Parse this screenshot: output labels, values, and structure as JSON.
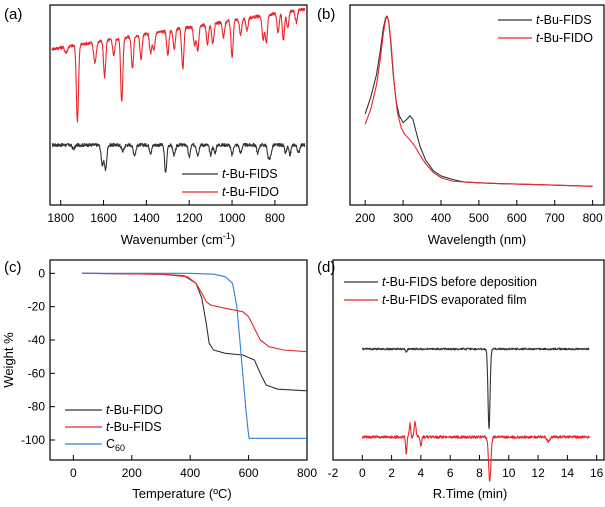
{
  "colors": {
    "black": "#333333",
    "red": "#e8262a",
    "blue": "#2f7fd8"
  },
  "chart_data": [
    {
      "panel_label": "(a)",
      "type": "line",
      "xlabel_main": "Wavenumber (cm",
      "xlabel_sup": "-1",
      "xlabel_end": ")",
      "ylabel": "",
      "xlim": [
        1850,
        650
      ],
      "x_reversed": true,
      "yticks_shown": false,
      "xticks": [
        1800,
        1600,
        1400,
        1200,
        1000,
        800
      ],
      "legend_position": "bottom-right",
      "series": [
        {
          "name_italic": "t",
          "name_rest": "-Bu-FIDS",
          "color": "#333333",
          "baseline": 0.3,
          "noise": 0.008,
          "peaks": [
            [
              1740,
              0.02,
              6
            ],
            [
              1605,
              0.1,
              6
            ],
            [
              1590,
              0.12,
              5
            ],
            [
              1510,
              0.03,
              6
            ],
            [
              1455,
              0.05,
              6
            ],
            [
              1380,
              0.04,
              5
            ],
            [
              1310,
              0.14,
              5
            ],
            [
              1270,
              0.05,
              6
            ],
            [
              1200,
              0.06,
              5
            ],
            [
              1160,
              0.05,
              5
            ],
            [
              1100,
              0.05,
              5
            ],
            [
              1080,
              0.04,
              5
            ],
            [
              1000,
              0.05,
              5
            ],
            [
              960,
              0.04,
              5
            ],
            [
              880,
              0.04,
              5
            ],
            [
              830,
              0.06,
              5
            ],
            [
              820,
              0.05,
              5
            ],
            [
              750,
              0.04,
              5
            ],
            [
              730,
              0.05,
              5
            ],
            [
              690,
              0.04,
              5
            ]
          ]
        },
        {
          "name_italic": "t",
          "name_rest": "-Bu-FIDO",
          "color": "#e8262a",
          "baseline_start": 0.78,
          "baseline_end": 0.98,
          "noise": 0.008,
          "peaks": [
            [
              1775,
              0.03,
              6
            ],
            [
              1722,
              0.38,
              5
            ],
            [
              1640,
              0.1,
              6
            ],
            [
              1595,
              0.18,
              5
            ],
            [
              1552,
              0.08,
              5
            ],
            [
              1515,
              0.32,
              5
            ],
            [
              1465,
              0.16,
              5
            ],
            [
              1425,
              0.12,
              5
            ],
            [
              1380,
              0.1,
              5
            ],
            [
              1365,
              0.09,
              5
            ],
            [
              1300,
              0.12,
              5
            ],
            [
              1270,
              0.1,
              5
            ],
            [
              1230,
              0.2,
              5
            ],
            [
              1175,
              0.1,
              5
            ],
            [
              1160,
              0.12,
              5
            ],
            [
              1115,
              0.1,
              5
            ],
            [
              1090,
              0.1,
              5
            ],
            [
              1040,
              0.08,
              5
            ],
            [
              1000,
              0.18,
              5
            ],
            [
              960,
              0.08,
              5
            ],
            [
              930,
              0.06,
              5
            ],
            [
              855,
              0.12,
              5
            ],
            [
              840,
              0.14,
              5
            ],
            [
              785,
              0.1,
              5
            ],
            [
              760,
              0.14,
              5
            ],
            [
              740,
              0.08,
              5
            ],
            [
              700,
              0.06,
              5
            ]
          ]
        }
      ]
    },
    {
      "panel_label": "(b)",
      "type": "line",
      "xlabel": "Wavelength (nm)",
      "ylabel": "",
      "xlim": [
        160,
        830
      ],
      "xticks": [
        200,
        300,
        400,
        500,
        600,
        700,
        800
      ],
      "yticks_shown": false,
      "legend_position": "top-right",
      "series": [
        {
          "name_italic": "t",
          "name_rest": "-Bu-FIDS",
          "color": "#333333",
          "points": [
            [
              200,
              0.43
            ],
            [
              215,
              0.53
            ],
            [
              230,
              0.66
            ],
            [
              240,
              0.8
            ],
            [
              248,
              0.93
            ],
            [
              254,
              0.99
            ],
            [
              258,
              1.0
            ],
            [
              262,
              0.97
            ],
            [
              267,
              0.86
            ],
            [
              274,
              0.66
            ],
            [
              282,
              0.5
            ],
            [
              290,
              0.42
            ],
            [
              300,
              0.38
            ],
            [
              310,
              0.4
            ],
            [
              318,
              0.42
            ],
            [
              326,
              0.4
            ],
            [
              334,
              0.33
            ],
            [
              345,
              0.24
            ],
            [
              360,
              0.16
            ],
            [
              380,
              0.1
            ],
            [
              400,
              0.07
            ],
            [
              430,
              0.05
            ],
            [
              460,
              0.035
            ],
            [
              500,
              0.03
            ],
            [
              560,
              0.025
            ],
            [
              650,
              0.02
            ],
            [
              800,
              0.01
            ]
          ]
        },
        {
          "name_italic": "t",
          "name_rest": "-Bu-FIDO",
          "color": "#e8262a",
          "points": [
            [
              200,
              0.37
            ],
            [
              215,
              0.46
            ],
            [
              230,
              0.6
            ],
            [
              240,
              0.75
            ],
            [
              248,
              0.9
            ],
            [
              254,
              0.98
            ],
            [
              258,
              1.0
            ],
            [
              262,
              0.97
            ],
            [
              268,
              0.85
            ],
            [
              276,
              0.62
            ],
            [
              285,
              0.44
            ],
            [
              295,
              0.35
            ],
            [
              305,
              0.31
            ],
            [
              318,
              0.28
            ],
            [
              332,
              0.24
            ],
            [
              345,
              0.19
            ],
            [
              360,
              0.14
            ],
            [
              380,
              0.09
            ],
            [
              400,
              0.06
            ],
            [
              430,
              0.04
            ],
            [
              460,
              0.035
            ],
            [
              500,
              0.03
            ],
            [
              560,
              0.025
            ],
            [
              650,
              0.02
            ],
            [
              800,
              0.01
            ]
          ]
        }
      ]
    },
    {
      "panel_label": "(c)",
      "type": "line",
      "xlabel": "Temperature (ºC)",
      "ylabel": "Weight %",
      "xlim": [
        -80,
        800
      ],
      "ylim": [
        -112,
        8
      ],
      "xticks": [
        0,
        200,
        400,
        600,
        800
      ],
      "yticks": [
        0,
        -20,
        -40,
        -60,
        -80,
        -100
      ],
      "legend_position": "bottom-left",
      "series": [
        {
          "name_italic": "t",
          "name_rest": "-Bu-FIDO",
          "color": "#333333",
          "points": [
            [
              30,
              0
            ],
            [
              300,
              -0.5
            ],
            [
              380,
              -1.5
            ],
            [
              420,
              -6
            ],
            [
              440,
              -15
            ],
            [
              455,
              -30
            ],
            [
              465,
              -42
            ],
            [
              480,
              -46
            ],
            [
              520,
              -48
            ],
            [
              580,
              -49
            ],
            [
              620,
              -52
            ],
            [
              640,
              -60
            ],
            [
              660,
              -67
            ],
            [
              700,
              -69.5
            ],
            [
              800,
              -70.5
            ]
          ]
        },
        {
          "name_italic": "t",
          "name_rest": "-Bu-FIDS",
          "color": "#e8262a",
          "points": [
            [
              30,
              0
            ],
            [
              300,
              -0.5
            ],
            [
              390,
              -2
            ],
            [
              420,
              -6
            ],
            [
              440,
              -12
            ],
            [
              455,
              -17
            ],
            [
              470,
              -19
            ],
            [
              520,
              -21
            ],
            [
              580,
              -23
            ],
            [
              600,
              -26
            ],
            [
              620,
              -33
            ],
            [
              640,
              -40
            ],
            [
              670,
              -44
            ],
            [
              720,
              -46
            ],
            [
              800,
              -47
            ]
          ]
        },
        {
          "name": "C",
          "name_sub": "60",
          "color": "#2f7fd8",
          "points": [
            [
              30,
              0
            ],
            [
              400,
              0
            ],
            [
              480,
              -0.5
            ],
            [
              520,
              -2
            ],
            [
              545,
              -6
            ],
            [
              560,
              -20
            ],
            [
              570,
              -40
            ],
            [
              580,
              -60
            ],
            [
              590,
              -80
            ],
            [
              598,
              -94
            ],
            [
              602,
              -99
            ],
            [
              800,
              -99
            ]
          ]
        }
      ]
    },
    {
      "panel_label": "(d)",
      "type": "line",
      "xlabel": "R.Time (min)",
      "ylabel": "",
      "xlim": [
        -2,
        16.5
      ],
      "xticks": [
        -2,
        0,
        2,
        4,
        6,
        8,
        10,
        12,
        14,
        16
      ],
      "yticks_shown": false,
      "legend_position": "top",
      "series": [
        {
          "name_italic": "t",
          "name_rest": "-Bu-FIDS before deposition",
          "color": "#333333",
          "baseline": 0.45,
          "noise": 0.004,
          "peaks": [
            [
              3.0,
              -0.015,
              0.05
            ],
            [
              8.65,
              -0.36,
              0.07
            ]
          ]
        },
        {
          "name_italic": "t",
          "name_rest": "-Bu-FIDS evaporated film",
          "color": "#e8262a",
          "baseline": 0.85,
          "noise": 0.006,
          "peaks": [
            [
              3.0,
              -0.08,
              0.04
            ],
            [
              3.25,
              0.06,
              0.05
            ],
            [
              3.6,
              0.07,
              0.06
            ],
            [
              4.0,
              -0.04,
              0.05
            ],
            [
              8.7,
              -0.2,
              0.08
            ],
            [
              12.7,
              -0.02,
              0.1
            ]
          ]
        }
      ]
    }
  ]
}
